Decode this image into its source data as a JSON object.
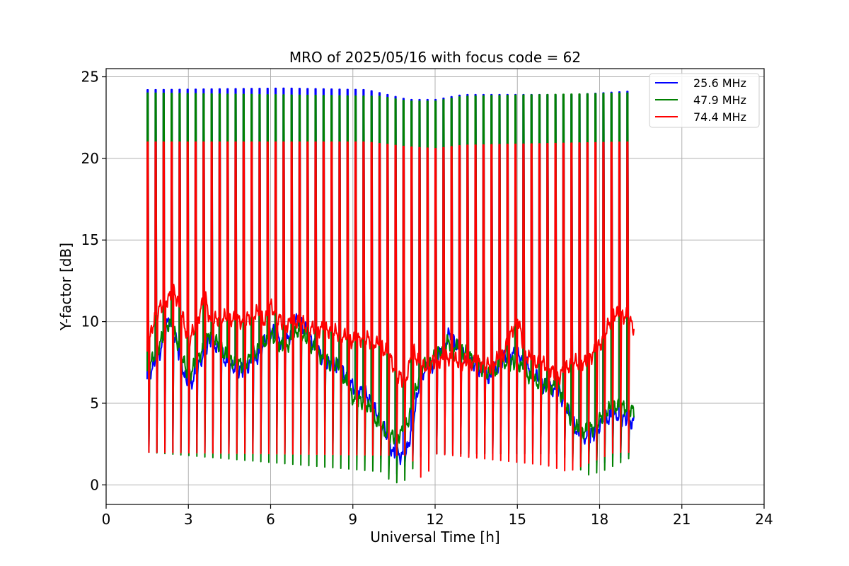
{
  "chart_data": {
    "type": "line",
    "title": "MRO of 2025/05/16 with focus code = 62",
    "xlabel": "Universal Time [h]",
    "ylabel": "Y-factor [dB]",
    "xlim": [
      0,
      24
    ],
    "ylim": [
      -1.2,
      25.5
    ],
    "xticks": [
      0,
      3,
      6,
      9,
      12,
      15,
      18,
      21,
      24
    ],
    "yticks": [
      0,
      5,
      10,
      15,
      20,
      25
    ],
    "grid": true,
    "legend_position": "top-right",
    "x_range_data": [
      1.5,
      19.25
    ],
    "pulse_start": 1.5,
    "pulse_end": 19.0,
    "pulse_count": 61,
    "series": [
      {
        "name": "25.6 MHz",
        "color": "#0000ff",
        "peak": [
          [
            1.5,
            24.2
          ],
          [
            6.5,
            24.3
          ],
          [
            9.5,
            24.2
          ],
          [
            10.0,
            24.0
          ],
          [
            11.0,
            23.6
          ],
          [
            12.0,
            23.6
          ],
          [
            13.0,
            23.9
          ],
          [
            15.0,
            23.9
          ],
          [
            17.0,
            23.9
          ],
          [
            19.0,
            24.1
          ]
        ],
        "trough": [
          [
            1.5,
            2.0
          ],
          [
            9.8,
            1.9
          ],
          [
            10.5,
            0.6
          ],
          [
            11.0,
            1.4
          ],
          [
            11.5,
            1.9
          ],
          [
            16.5,
            1.9
          ],
          [
            18.0,
            1.3
          ],
          [
            19.0,
            1.8
          ]
        ],
        "baseline": [
          [
            1.5,
            6.5
          ],
          [
            2.0,
            8.3
          ],
          [
            2.3,
            10.3
          ],
          [
            2.6,
            8.5
          ],
          [
            3.0,
            5.8
          ],
          [
            3.5,
            7.8
          ],
          [
            3.8,
            9.0
          ],
          [
            4.2,
            8.0
          ],
          [
            4.5,
            7.3
          ],
          [
            5.0,
            7.0
          ],
          [
            5.5,
            7.8
          ],
          [
            6.0,
            9.5
          ],
          [
            6.5,
            8.5
          ],
          [
            7.0,
            10.2
          ],
          [
            7.5,
            8.8
          ],
          [
            8.0,
            7.5
          ],
          [
            8.5,
            7.2
          ],
          [
            9.0,
            6.0
          ],
          [
            9.5,
            5.5
          ],
          [
            10.0,
            4.0
          ],
          [
            10.5,
            1.8
          ],
          [
            10.8,
            1.8
          ],
          [
            11.0,
            2.2
          ],
          [
            11.5,
            6.8
          ],
          [
            12.0,
            7.5
          ],
          [
            12.5,
            9.2
          ],
          [
            13.0,
            8.0
          ],
          [
            13.5,
            7.3
          ],
          [
            14.0,
            6.5
          ],
          [
            14.5,
            7.8
          ],
          [
            15.0,
            8.0
          ],
          [
            15.5,
            7.0
          ],
          [
            16.0,
            6.0
          ],
          [
            16.5,
            5.8
          ],
          [
            17.0,
            4.0
          ],
          [
            17.3,
            2.8
          ],
          [
            17.8,
            3.2
          ],
          [
            18.2,
            4.0
          ],
          [
            18.6,
            4.3
          ],
          [
            19.0,
            4.0
          ],
          [
            19.25,
            3.8
          ]
        ]
      },
      {
        "name": "47.9 MHz",
        "color": "#008000",
        "peak": [
          [
            1.5,
            24.0
          ],
          [
            10.0,
            23.8
          ],
          [
            11.0,
            23.5
          ],
          [
            12.0,
            23.5
          ],
          [
            13.0,
            23.8
          ],
          [
            19.0,
            24.0
          ]
        ],
        "trough": [
          [
            1.5,
            2.0
          ],
          [
            10.0,
            0.8
          ],
          [
            10.4,
            0.1
          ],
          [
            10.8,
            0.2
          ],
          [
            11.5,
            1.9
          ],
          [
            16.5,
            1.9
          ],
          [
            17.5,
            0.6
          ],
          [
            18.0,
            0.8
          ],
          [
            19.0,
            1.6
          ]
        ],
        "baseline": [
          [
            1.5,
            7.0
          ],
          [
            2.0,
            8.8
          ],
          [
            2.3,
            10.0
          ],
          [
            2.6,
            8.8
          ],
          [
            3.0,
            6.6
          ],
          [
            3.5,
            8.2
          ],
          [
            3.8,
            9.3
          ],
          [
            4.2,
            8.3
          ],
          [
            4.5,
            7.6
          ],
          [
            5.0,
            7.3
          ],
          [
            5.5,
            8.2
          ],
          [
            6.0,
            9.2
          ],
          [
            6.5,
            8.3
          ],
          [
            7.0,
            9.5
          ],
          [
            7.5,
            8.5
          ],
          [
            8.0,
            7.6
          ],
          [
            8.5,
            7.2
          ],
          [
            9.0,
            5.3
          ],
          [
            9.5,
            5.0
          ],
          [
            10.0,
            3.5
          ],
          [
            10.5,
            2.9
          ],
          [
            10.8,
            3.2
          ],
          [
            11.0,
            3.8
          ],
          [
            11.5,
            7.2
          ],
          [
            12.0,
            7.8
          ],
          [
            12.5,
            8.8
          ],
          [
            13.0,
            8.2
          ],
          [
            13.5,
            7.5
          ],
          [
            14.0,
            6.7
          ],
          [
            14.5,
            7.5
          ],
          [
            15.0,
            7.5
          ],
          [
            15.5,
            6.5
          ],
          [
            16.0,
            6.0
          ],
          [
            16.5,
            6.0
          ],
          [
            17.0,
            3.8
          ],
          [
            17.3,
            3.2
          ],
          [
            17.8,
            3.5
          ],
          [
            18.2,
            4.5
          ],
          [
            18.6,
            4.8
          ],
          [
            19.0,
            4.7
          ],
          [
            19.25,
            4.5
          ]
        ]
      },
      {
        "name": "74.4 MHz",
        "color": "#ff0000",
        "peak": [
          [
            1.5,
            21.0
          ],
          [
            9.5,
            21.0
          ],
          [
            10.0,
            20.9
          ],
          [
            11.0,
            20.7
          ],
          [
            12.0,
            20.6
          ],
          [
            13.0,
            20.8
          ],
          [
            19.0,
            21.0
          ]
        ],
        "trough": [
          [
            1.5,
            2.0
          ],
          [
            11.0,
            1.8
          ],
          [
            11.3,
            1.0
          ],
          [
            11.5,
            0.1
          ],
          [
            12.0,
            1.9
          ],
          [
            16.0,
            1.2
          ],
          [
            16.8,
            0.8
          ],
          [
            17.5,
            1.3
          ],
          [
            18.5,
            2.0
          ],
          [
            19.0,
            2.0
          ]
        ],
        "baseline": [
          [
            1.5,
            8.2
          ],
          [
            1.8,
            10.5
          ],
          [
            2.2,
            11.3
          ],
          [
            2.5,
            11.8
          ],
          [
            2.8,
            10.2
          ],
          [
            3.0,
            8.8
          ],
          [
            3.3,
            9.8
          ],
          [
            3.6,
            11.6
          ],
          [
            3.8,
            10.0
          ],
          [
            4.2,
            10.3
          ],
          [
            5.0,
            10.0
          ],
          [
            5.5,
            10.6
          ],
          [
            5.8,
            10.0
          ],
          [
            6.0,
            11.0
          ],
          [
            6.3,
            10.2
          ],
          [
            6.5,
            9.8
          ],
          [
            7.0,
            10.0
          ],
          [
            7.5,
            9.6
          ],
          [
            8.0,
            9.5
          ],
          [
            8.5,
            9.3
          ],
          [
            9.0,
            8.8
          ],
          [
            9.5,
            9.0
          ],
          [
            10.0,
            8.5
          ],
          [
            10.3,
            8.0
          ],
          [
            10.6,
            6.8
          ],
          [
            10.9,
            6.3
          ],
          [
            11.2,
            8.2
          ],
          [
            11.5,
            7.2
          ],
          [
            12.0,
            7.5
          ],
          [
            12.5,
            7.8
          ],
          [
            13.0,
            7.5
          ],
          [
            13.5,
            7.5
          ],
          [
            14.0,
            7.3
          ],
          [
            14.5,
            8.0
          ],
          [
            15.0,
            10.3
          ],
          [
            15.3,
            8.0
          ],
          [
            15.6,
            7.5
          ],
          [
            16.0,
            7.4
          ],
          [
            16.5,
            6.6
          ],
          [
            17.0,
            7.5
          ],
          [
            17.5,
            7.5
          ],
          [
            18.0,
            8.5
          ],
          [
            18.5,
            10.5
          ],
          [
            19.0,
            10.3
          ],
          [
            19.25,
            9.6
          ]
        ]
      }
    ]
  }
}
